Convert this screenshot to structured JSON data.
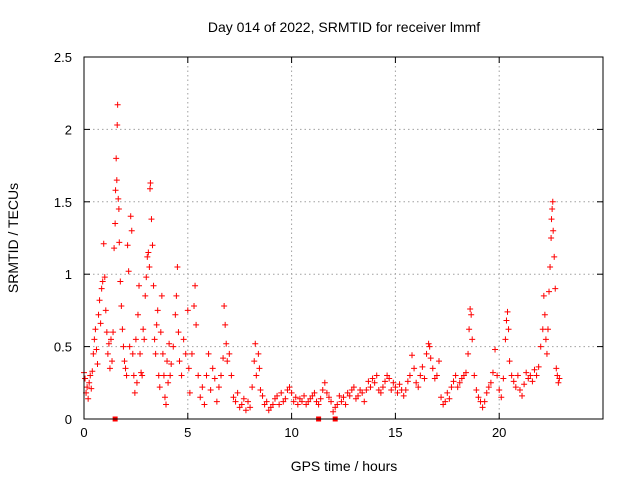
{
  "chart_data": {
    "type": "scatter",
    "title": "Day 014 of 2022, SRMTID for receiver lmmf",
    "xlabel": "GPS time / hours",
    "ylabel": "SRMTID / TECUs",
    "xlim": [
      0,
      25
    ],
    "ylim": [
      0,
      2.5
    ],
    "xticks": [
      0,
      5,
      10,
      15,
      20
    ],
    "xtick_labels": [
      "0",
      "5",
      "10",
      "15",
      "20"
    ],
    "yticks": [
      0,
      0.5,
      1,
      1.5,
      2,
      2.5
    ],
    "ytick_labels": [
      "0",
      "0.5",
      "1",
      "1.5",
      "2",
      "2.5"
    ],
    "grid": true,
    "marker": "+",
    "color": "#ff0000",
    "series": [
      {
        "name": "SRMTID",
        "points": [
          [
            0.0,
            0.32
          ],
          [
            0.05,
            0.28
          ],
          [
            0.1,
            0.18
          ],
          [
            0.15,
            0.22
          ],
          [
            0.2,
            0.14
          ],
          [
            0.25,
            0.25
          ],
          [
            0.3,
            0.3
          ],
          [
            0.35,
            0.21
          ],
          [
            0.4,
            0.33
          ],
          [
            0.45,
            0.45
          ],
          [
            0.5,
            0.55
          ],
          [
            0.55,
            0.62
          ],
          [
            0.6,
            0.48
          ],
          [
            0.65,
            0.38
          ],
          [
            0.7,
            0.72
          ],
          [
            0.75,
            0.82
          ],
          [
            0.8,
            0.66
          ],
          [
            0.85,
            0.9
          ],
          [
            0.9,
            0.95
          ],
          [
            0.95,
            1.21
          ],
          [
            1.0,
            0.98
          ],
          [
            1.05,
            0.75
          ],
          [
            1.1,
            0.6
          ],
          [
            1.15,
            0.45
          ],
          [
            1.2,
            0.52
          ],
          [
            1.25,
            0.35
          ],
          [
            1.3,
            0.55
          ],
          [
            1.35,
            0.4
          ],
          [
            1.4,
            0.6
          ],
          [
            1.45,
            1.18
          ],
          [
            1.5,
            1.35
          ],
          [
            1.52,
            1.58
          ],
          [
            1.55,
            1.8
          ],
          [
            1.58,
            1.65
          ],
          [
            1.6,
            2.03
          ],
          [
            1.62,
            2.17
          ],
          [
            1.65,
            1.52
          ],
          [
            1.68,
            1.45
          ],
          [
            1.7,
            1.22
          ],
          [
            1.75,
            0.95
          ],
          [
            1.8,
            0.78
          ],
          [
            1.85,
            0.62
          ],
          [
            1.9,
            0.5
          ],
          [
            1.95,
            0.4
          ],
          [
            2.0,
            0.35
          ],
          [
            2.05,
            0.3
          ],
          [
            2.1,
            1.2
          ],
          [
            2.15,
            1.02
          ],
          [
            2.2,
            0.5
          ],
          [
            2.25,
            1.4
          ],
          [
            2.3,
            1.3
          ],
          [
            2.35,
            0.45
          ],
          [
            2.4,
            0.3
          ],
          [
            2.45,
            0.18
          ],
          [
            2.5,
            0.55
          ],
          [
            2.55,
            0.25
          ],
          [
            2.6,
            0.72
          ],
          [
            2.65,
            0.92
          ],
          [
            2.7,
            0.45
          ],
          [
            2.75,
            0.32
          ],
          [
            2.8,
            0.3
          ],
          [
            2.85,
            0.62
          ],
          [
            2.9,
            0.55
          ],
          [
            2.95,
            0.85
          ],
          [
            3.0,
            0.98
          ],
          [
            3.05,
            1.12
          ],
          [
            3.1,
            1.15
          ],
          [
            3.15,
            1.05
          ],
          [
            3.18,
            1.59
          ],
          [
            3.2,
            1.63
          ],
          [
            3.25,
            1.38
          ],
          [
            3.3,
            1.2
          ],
          [
            3.35,
            0.92
          ],
          [
            3.4,
            0.55
          ],
          [
            3.45,
            0.45
          ],
          [
            3.5,
            0.65
          ],
          [
            3.55,
            0.75
          ],
          [
            3.6,
            0.3
          ],
          [
            3.65,
            0.22
          ],
          [
            3.7,
            0.6
          ],
          [
            3.75,
            0.85
          ],
          [
            3.8,
            0.45
          ],
          [
            3.85,
            0.3
          ],
          [
            3.9,
            0.15
          ],
          [
            3.95,
            0.1
          ],
          [
            4.0,
            0.4
          ],
          [
            4.05,
            0.25
          ],
          [
            4.1,
            0.52
          ],
          [
            4.15,
            0.3
          ],
          [
            4.2,
            0.38
          ],
          [
            4.3,
            0.5
          ],
          [
            4.4,
            0.72
          ],
          [
            4.45,
            0.85
          ],
          [
            4.5,
            1.05
          ],
          [
            4.55,
            0.6
          ],
          [
            4.6,
            0.4
          ],
          [
            4.7,
            0.3
          ],
          [
            4.8,
            0.55
          ],
          [
            4.9,
            0.45
          ],
          [
            5.0,
            0.75
          ],
          [
            5.05,
            0.35
          ],
          [
            5.1,
            0.18
          ],
          [
            5.2,
            0.45
          ],
          [
            5.3,
            0.78
          ],
          [
            5.35,
            0.92
          ],
          [
            5.4,
            0.65
          ],
          [
            5.5,
            0.3
          ],
          [
            5.6,
            0.15
          ],
          [
            5.7,
            0.22
          ],
          [
            5.8,
            0.1
          ],
          [
            5.9,
            0.3
          ],
          [
            6.0,
            0.45
          ],
          [
            6.1,
            0.2
          ],
          [
            6.2,
            0.35
          ],
          [
            6.3,
            0.28
          ],
          [
            6.4,
            0.12
          ],
          [
            6.5,
            0.22
          ],
          [
            6.6,
            0.3
          ],
          [
            6.7,
            0.42
          ],
          [
            6.75,
            0.78
          ],
          [
            6.8,
            0.65
          ],
          [
            6.85,
            0.52
          ],
          [
            6.9,
            0.4
          ],
          [
            7.0,
            0.45
          ],
          [
            7.1,
            0.3
          ],
          [
            7.2,
            0.15
          ],
          [
            7.3,
            0.12
          ],
          [
            7.4,
            0.18
          ],
          [
            7.5,
            0.08
          ],
          [
            7.6,
            0.1
          ],
          [
            7.7,
            0.14
          ],
          [
            7.8,
            0.06
          ],
          [
            7.9,
            0.12
          ],
          [
            8.0,
            0.08
          ],
          [
            8.1,
            0.22
          ],
          [
            8.2,
            0.4
          ],
          [
            8.25,
            0.52
          ],
          [
            8.3,
            0.3
          ],
          [
            8.4,
            0.45
          ],
          [
            8.45,
            0.35
          ],
          [
            8.5,
            0.2
          ],
          [
            8.6,
            0.16
          ],
          [
            8.7,
            0.1
          ],
          [
            8.8,
            0.12
          ],
          [
            8.9,
            0.06
          ],
          [
            9.0,
            0.08
          ],
          [
            9.1,
            0.1
          ],
          [
            9.2,
            0.14
          ],
          [
            9.3,
            0.16
          ],
          [
            9.4,
            0.1
          ],
          [
            9.5,
            0.18
          ],
          [
            9.6,
            0.12
          ],
          [
            9.7,
            0.14
          ],
          [
            9.8,
            0.2
          ],
          [
            9.9,
            0.22
          ],
          [
            10.0,
            0.18
          ],
          [
            10.1,
            0.12
          ],
          [
            10.2,
            0.15
          ],
          [
            10.3,
            0.1
          ],
          [
            10.4,
            0.14
          ],
          [
            10.5,
            0.12
          ],
          [
            10.6,
            0.16
          ],
          [
            10.7,
            0.1
          ],
          [
            10.8,
            0.12
          ],
          [
            10.9,
            0.14
          ],
          [
            11.0,
            0.16
          ],
          [
            11.1,
            0.18
          ],
          [
            11.2,
            0.12
          ],
          [
            11.3,
            0.1
          ],
          [
            11.4,
            0.14
          ],
          [
            11.5,
            0.2
          ],
          [
            11.6,
            0.25
          ],
          [
            11.7,
            0.18
          ],
          [
            11.8,
            0.15
          ],
          [
            11.9,
            0.12
          ],
          [
            12.0,
            0.05
          ],
          [
            12.1,
            0.08
          ],
          [
            12.2,
            0.1
          ],
          [
            12.3,
            0.16
          ],
          [
            12.4,
            0.12
          ],
          [
            12.5,
            0.15
          ],
          [
            12.6,
            0.1
          ],
          [
            12.7,
            0.18
          ],
          [
            12.8,
            0.16
          ],
          [
            12.9,
            0.2
          ],
          [
            13.0,
            0.22
          ],
          [
            13.1,
            0.14
          ],
          [
            13.2,
            0.16
          ],
          [
            13.3,
            0.2
          ],
          [
            13.4,
            0.18
          ],
          [
            13.5,
            0.12
          ],
          [
            13.6,
            0.2
          ],
          [
            13.7,
            0.26
          ],
          [
            13.8,
            0.22
          ],
          [
            13.9,
            0.28
          ],
          [
            14.0,
            0.25
          ],
          [
            14.1,
            0.3
          ],
          [
            14.2,
            0.2
          ],
          [
            14.3,
            0.18
          ],
          [
            14.4,
            0.22
          ],
          [
            14.5,
            0.26
          ],
          [
            14.6,
            0.3
          ],
          [
            14.7,
            0.28
          ],
          [
            14.8,
            0.2
          ],
          [
            14.9,
            0.25
          ],
          [
            15.0,
            0.22
          ],
          [
            15.1,
            0.18
          ],
          [
            15.2,
            0.24
          ],
          [
            15.3,
            0.2
          ],
          [
            15.4,
            0.16
          ],
          [
            15.5,
            0.2
          ],
          [
            15.6,
            0.26
          ],
          [
            15.7,
            0.3
          ],
          [
            15.8,
            0.44
          ],
          [
            15.9,
            0.35
          ],
          [
            16.0,
            0.25
          ],
          [
            16.1,
            0.22
          ],
          [
            16.2,
            0.3
          ],
          [
            16.3,
            0.36
          ],
          [
            16.4,
            0.28
          ],
          [
            16.5,
            0.45
          ],
          [
            16.6,
            0.52
          ],
          [
            16.65,
            0.5
          ],
          [
            16.7,
            0.42
          ],
          [
            16.8,
            0.35
          ],
          [
            16.9,
            0.28
          ],
          [
            17.0,
            0.3
          ],
          [
            17.1,
            0.4
          ],
          [
            17.2,
            0.15
          ],
          [
            17.3,
            0.1
          ],
          [
            17.4,
            0.12
          ],
          [
            17.5,
            0.18
          ],
          [
            17.6,
            0.14
          ],
          [
            17.7,
            0.22
          ],
          [
            17.8,
            0.26
          ],
          [
            17.9,
            0.3
          ],
          [
            18.0,
            0.22
          ],
          [
            18.1,
            0.25
          ],
          [
            18.2,
            0.28
          ],
          [
            18.3,
            0.3
          ],
          [
            18.4,
            0.32
          ],
          [
            18.5,
            0.45
          ],
          [
            18.55,
            0.62
          ],
          [
            18.6,
            0.76
          ],
          [
            18.65,
            0.72
          ],
          [
            18.7,
            0.55
          ],
          [
            18.8,
            0.3
          ],
          [
            18.9,
            0.2
          ],
          [
            19.0,
            0.15
          ],
          [
            19.1,
            0.12
          ],
          [
            19.2,
            0.08
          ],
          [
            19.3,
            0.12
          ],
          [
            19.4,
            0.18
          ],
          [
            19.5,
            0.22
          ],
          [
            19.6,
            0.25
          ],
          [
            19.7,
            0.32
          ],
          [
            19.8,
            0.48
          ],
          [
            19.9,
            0.3
          ],
          [
            20.0,
            0.2
          ],
          [
            20.1,
            0.15
          ],
          [
            20.2,
            0.28
          ],
          [
            20.3,
            0.55
          ],
          [
            20.35,
            0.68
          ],
          [
            20.4,
            0.74
          ],
          [
            20.45,
            0.62
          ],
          [
            20.5,
            0.4
          ],
          [
            20.6,
            0.3
          ],
          [
            20.7,
            0.26
          ],
          [
            20.8,
            0.22
          ],
          [
            20.9,
            0.3
          ],
          [
            21.0,
            0.2
          ],
          [
            21.1,
            0.16
          ],
          [
            21.2,
            0.24
          ],
          [
            21.3,
            0.32
          ],
          [
            21.4,
            0.28
          ],
          [
            21.5,
            0.3
          ],
          [
            21.6,
            0.26
          ],
          [
            21.7,
            0.34
          ],
          [
            21.8,
            0.3
          ],
          [
            21.9,
            0.36
          ],
          [
            22.0,
            0.5
          ],
          [
            22.1,
            0.62
          ],
          [
            22.15,
            0.85
          ],
          [
            22.2,
            0.72
          ],
          [
            22.25,
            0.55
          ],
          [
            22.3,
            0.45
          ],
          [
            22.35,
            0.62
          ],
          [
            22.4,
            0.88
          ],
          [
            22.45,
            1.05
          ],
          [
            22.5,
            1.25
          ],
          [
            22.52,
            1.38
          ],
          [
            22.55,
            1.45
          ],
          [
            22.58,
            1.5
          ],
          [
            22.6,
            1.3
          ],
          [
            22.65,
            1.12
          ],
          [
            22.7,
            0.9
          ],
          [
            22.75,
            0.35
          ],
          [
            22.8,
            0.3
          ],
          [
            22.85,
            0.25
          ],
          [
            22.9,
            0.28
          ]
        ]
      },
      {
        "name": "gap markers",
        "marker": "square",
        "points": [
          [
            1.5,
            0.0
          ],
          [
            11.3,
            0.0
          ],
          [
            12.1,
            0.0
          ]
        ]
      }
    ]
  }
}
